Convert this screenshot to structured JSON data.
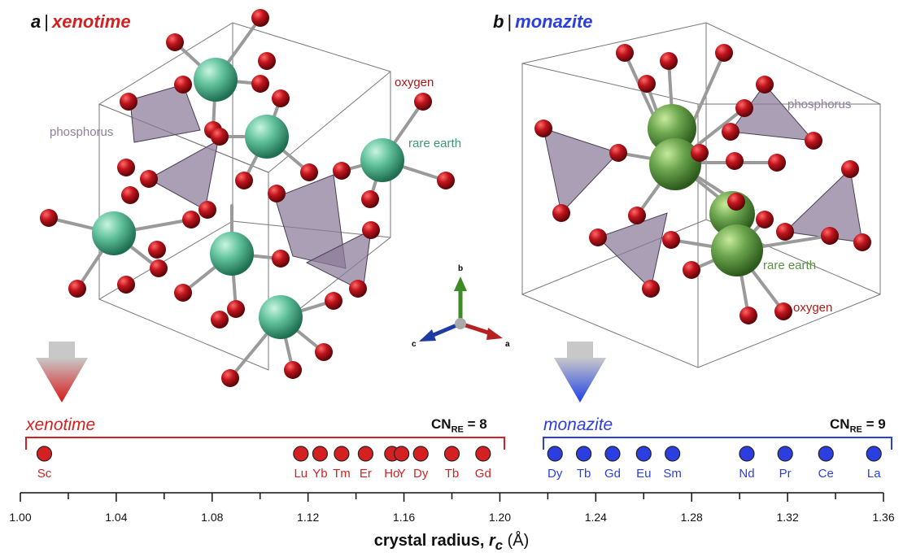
{
  "panels": {
    "a": {
      "letter": "a",
      "sep": "|",
      "name": "xenotime"
    },
    "b": {
      "letter": "b",
      "sep": "|",
      "name": "monazite"
    }
  },
  "structure_labels": {
    "xenotime": {
      "oxygen": "oxygen",
      "phosphorus": "phosphorus",
      "rare_earth": "rare earth"
    },
    "monazite": {
      "oxygen": "oxygen",
      "phosphorus": "phosphorus",
      "rare_earth": "rare earth"
    }
  },
  "axes_triad": {
    "b": "b",
    "c": "c",
    "a": "a"
  },
  "scale": {
    "xenotime": {
      "name": "xenotime",
      "cn_prefix": "CN",
      "cn_sub": "RE",
      "cn_value": " = 8",
      "elements": [
        {
          "symbol": "Sc",
          "radius": 1.01
        },
        {
          "symbol": "Lu",
          "radius": 1.117
        },
        {
          "symbol": "Yb",
          "radius": 1.125
        },
        {
          "symbol": "Tm",
          "radius": 1.134
        },
        {
          "symbol": "Er",
          "radius": 1.144
        },
        {
          "symbol": "Ho",
          "radius": 1.155
        },
        {
          "symbol": "Y",
          "radius": 1.159
        },
        {
          "symbol": "Dy",
          "radius": 1.167
        },
        {
          "symbol": "Tb",
          "radius": 1.18
        },
        {
          "symbol": "Gd",
          "radius": 1.193
        }
      ]
    },
    "monazite": {
      "name": "monazite",
      "cn_prefix": "CN",
      "cn_sub": "RE",
      "cn_value": " = 9",
      "elements": [
        {
          "symbol": "Dy",
          "radius": 1.223
        },
        {
          "symbol": "Tb",
          "radius": 1.235
        },
        {
          "symbol": "Gd",
          "radius": 1.247
        },
        {
          "symbol": "Eu",
          "radius": 1.26
        },
        {
          "symbol": "Sm",
          "radius": 1.272
        },
        {
          "symbol": "Nd",
          "radius": 1.303
        },
        {
          "symbol": "Pr",
          "radius": 1.319
        },
        {
          "symbol": "Ce",
          "radius": 1.336
        },
        {
          "symbol": "La",
          "radius": 1.356
        }
      ]
    },
    "ticks": [
      "1.00",
      "1.04",
      "1.08",
      "1.12",
      "1.16",
      "1.20",
      "1.24",
      "1.28",
      "1.32",
      "1.36"
    ],
    "axis_min": 1.0,
    "axis_max": 1.36,
    "axis_title_main": "crystal radius, ",
    "axis_title_var": "r",
    "axis_title_sub": "c",
    "axis_title_unit": " (Å)"
  },
  "colors": {
    "xenotime": "#d42020",
    "monazite": "#2b3fe0",
    "oxygen": "#b0101a",
    "rare_earth_xenotime": "#5fbf9a",
    "rare_earth_monazite": "#6aa050",
    "phosphorus": "#8e7f9a"
  }
}
